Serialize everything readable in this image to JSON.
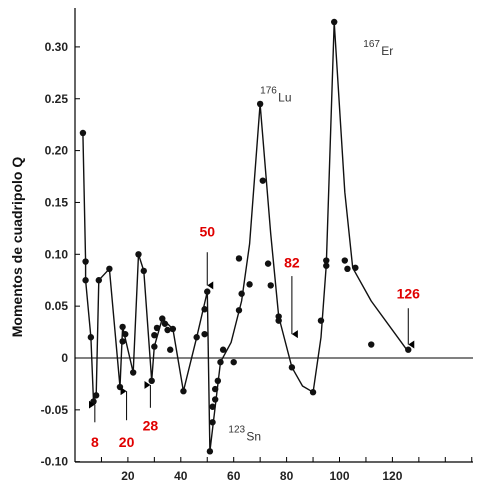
{
  "chart_data": {
    "type": "scatter",
    "title": "",
    "xlabel": "",
    "ylabel": "Momentos de cuadripolo Q",
    "xlim": [
      0,
      150
    ],
    "ylim": [
      -0.1,
      0.34
    ],
    "x_ticks": [
      20,
      40,
      60,
      80,
      100,
      120
    ],
    "y_ticks": [
      -0.1,
      -0.05,
      0,
      0.05,
      0.1,
      0.15,
      0.2,
      0.25,
      0.3
    ],
    "y_tick_labels": [
      "-0.10",
      "-0.05",
      "0",
      "0.05",
      "0.10",
      "0.15",
      "0.20",
      "0.25",
      "0.30"
    ],
    "grid": false,
    "magic_color": "#e00000",
    "series": [
      {
        "role": "data-points",
        "points": [
          [
            3,
            0.217
          ],
          [
            4,
            0.093
          ],
          [
            4,
            0.075
          ],
          [
            6,
            0.02
          ],
          [
            7,
            -0.042
          ],
          [
            8,
            -0.036
          ],
          [
            9,
            0.075
          ],
          [
            13,
            0.086
          ],
          [
            17,
            -0.028
          ],
          [
            18,
            0.016
          ],
          [
            18,
            0.03
          ],
          [
            19,
            0.023
          ],
          [
            22,
            -0.014
          ],
          [
            24,
            0.1
          ],
          [
            26,
            0.084
          ],
          [
            29,
            -0.022
          ],
          [
            30,
            0.011
          ],
          [
            30,
            0.022
          ],
          [
            31,
            0.029
          ],
          [
            33,
            0.038
          ],
          [
            34,
            0.033
          ],
          [
            35,
            0.027
          ],
          [
            36,
            0.008
          ],
          [
            37,
            0.028
          ],
          [
            41,
            -0.032
          ],
          [
            46,
            0.02
          ],
          [
            49,
            0.023
          ],
          [
            49,
            0.047
          ],
          [
            50,
            0.064
          ],
          [
            51,
            -0.09
          ],
          [
            52,
            -0.062
          ],
          [
            52,
            -0.047
          ],
          [
            53,
            -0.04
          ],
          [
            53,
            -0.03
          ],
          [
            54,
            -0.022
          ],
          [
            55,
            -0.004
          ],
          [
            56,
            0.008
          ],
          [
            60,
            -0.004
          ],
          [
            62,
            0.096
          ],
          [
            63,
            0.062
          ],
          [
            62,
            0.046
          ],
          [
            66,
            0.071
          ],
          [
            70,
            0.245
          ],
          [
            71,
            0.171
          ],
          [
            73,
            0.091
          ],
          [
            74,
            0.07
          ],
          [
            77,
            0.04
          ],
          [
            77,
            0.036
          ],
          [
            82,
            -0.009
          ],
          [
            90,
            -0.033
          ],
          [
            93,
            0.036
          ],
          [
            95,
            0.094
          ],
          [
            95,
            0.089
          ],
          [
            98,
            0.324
          ],
          [
            102,
            0.094
          ],
          [
            103,
            0.086
          ],
          [
            106,
            0.087
          ],
          [
            112,
            0.013
          ],
          [
            126,
            0.008
          ]
        ]
      },
      {
        "role": "trend-curve",
        "points": [
          [
            3,
            0.217
          ],
          [
            4,
            0.093
          ],
          [
            4,
            0.075
          ],
          [
            6,
            0.02
          ],
          [
            7,
            -0.042
          ],
          [
            8,
            -0.036
          ],
          [
            9,
            0.075
          ],
          [
            13,
            0.086
          ],
          [
            17,
            -0.028
          ],
          [
            18,
            0.03
          ],
          [
            22,
            -0.014
          ],
          [
            24,
            0.1
          ],
          [
            26,
            0.084
          ],
          [
            29,
            -0.022
          ],
          [
            30,
            0.011
          ],
          [
            33,
            0.038
          ],
          [
            37,
            0.028
          ],
          [
            41,
            -0.032
          ],
          [
            46,
            0.02
          ],
          [
            50,
            0.064
          ],
          [
            51,
            -0.09
          ],
          [
            55,
            -0.004
          ],
          [
            59,
            0.015
          ],
          [
            63,
            0.055
          ],
          [
            66,
            0.11
          ],
          [
            70,
            0.245
          ],
          [
            74,
            0.12
          ],
          [
            77,
            0.04
          ],
          [
            82,
            -0.009
          ],
          [
            86,
            -0.027
          ],
          [
            90,
            -0.033
          ],
          [
            93,
            0.02
          ],
          [
            95,
            0.09
          ],
          [
            98,
            0.324
          ],
          [
            102,
            0.16
          ],
          [
            105,
            0.087
          ],
          [
            112,
            0.055
          ],
          [
            126,
            0.006
          ]
        ]
      }
    ],
    "isotope_labels": [
      {
        "mass": "176",
        "symbol": "Lu",
        "x": 70,
        "y": 0.255
      },
      {
        "mass": "167",
        "symbol": "Er",
        "x": 109,
        "y": 0.3
      },
      {
        "mass": "123",
        "symbol": "Sn",
        "x": 58,
        "y": -0.072
      }
    ],
    "magic_numbers": [
      {
        "label": "8",
        "x": 7.5,
        "label_y": -0.081,
        "arrow_from": -0.062,
        "arrow_to": -0.045
      },
      {
        "label": "20",
        "x": 19.5,
        "label_y": -0.081,
        "arrow_from": -0.06,
        "arrow_to": -0.032
      },
      {
        "label": "28",
        "x": 28.5,
        "label_y": -0.065,
        "arrow_from": -0.048,
        "arrow_to": -0.026
      },
      {
        "label": "50",
        "x": 50,
        "label_y": 0.122,
        "arrow_from": 0.102,
        "arrow_to": 0.07
      },
      {
        "label": "82",
        "x": 82,
        "label_y": 0.092,
        "arrow_from": 0.079,
        "arrow_to": 0.023
      },
      {
        "label": "126",
        "x": 126,
        "label_y": 0.062,
        "arrow_from": 0.048,
        "arrow_to": 0.013
      }
    ]
  }
}
